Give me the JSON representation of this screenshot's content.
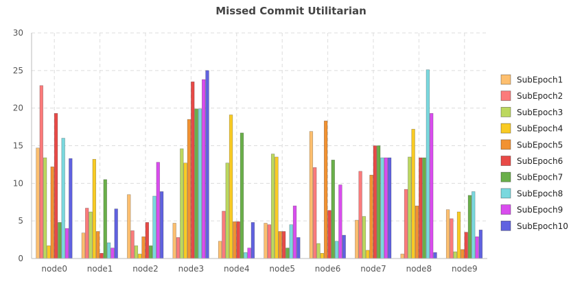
{
  "chart_data": {
    "type": "bar",
    "title": "Missed Commit Utilitarian",
    "xlabel": "",
    "ylabel": "",
    "ylim": [
      0,
      30
    ],
    "yticks": [
      0,
      5,
      10,
      15,
      20,
      25,
      30
    ],
    "grid": true,
    "legend_position": "right",
    "categories": [
      "node0",
      "node1",
      "node2",
      "node3",
      "node4",
      "node5",
      "node6",
      "node7",
      "node8",
      "node9"
    ],
    "series": [
      {
        "name": "SubEpoch1",
        "color": "#FDBF6F",
        "values": [
          14.7,
          3.4,
          8.5,
          4.7,
          2.3,
          4.7,
          16.9,
          5.1,
          0.6,
          6.5
        ]
      },
      {
        "name": "SubEpoch2",
        "color": "#FB7B7B",
        "values": [
          23.0,
          6.7,
          3.7,
          2.8,
          6.3,
          4.5,
          12.1,
          11.6,
          9.2,
          5.3
        ]
      },
      {
        "name": "SubEpoch3",
        "color": "#BCD85F",
        "values": [
          13.4,
          6.2,
          1.7,
          14.6,
          12.7,
          13.9,
          2.0,
          5.6,
          13.5,
          0.9
        ]
      },
      {
        "name": "SubEpoch4",
        "color": "#F9CB24",
        "values": [
          1.7,
          13.2,
          0.6,
          12.7,
          19.1,
          13.5,
          0.7,
          1.1,
          17.2,
          6.2
        ]
      },
      {
        "name": "SubEpoch5",
        "color": "#F29232",
        "values": [
          12.2,
          3.6,
          2.9,
          18.5,
          4.9,
          3.6,
          18.3,
          11.1,
          7.0,
          1.2
        ]
      },
      {
        "name": "SubEpoch6",
        "color": "#E84A47",
        "values": [
          19.3,
          0.7,
          4.8,
          23.5,
          4.9,
          3.6,
          6.4,
          15.0,
          13.4,
          3.5
        ]
      },
      {
        "name": "SubEpoch7",
        "color": "#6AAF4A",
        "values": [
          4.8,
          10.5,
          1.7,
          19.9,
          16.7,
          1.4,
          13.1,
          15.0,
          13.4,
          8.4
        ]
      },
      {
        "name": "SubEpoch8",
        "color": "#7AD8DE",
        "values": [
          16.0,
          2.1,
          8.3,
          19.9,
          0.8,
          4.5,
          2.3,
          13.4,
          25.1,
          8.9
        ]
      },
      {
        "name": "SubEpoch9",
        "color": "#D94DEE",
        "values": [
          4.0,
          1.4,
          12.8,
          23.8,
          1.4,
          7.0,
          9.8,
          13.4,
          19.3,
          2.9
        ]
      },
      {
        "name": "SubEpoch10",
        "color": "#6062E0",
        "values": [
          13.3,
          6.6,
          8.9,
          25.0,
          4.8,
          2.8,
          3.1,
          13.4,
          0.8,
          3.8
        ]
      }
    ]
  }
}
